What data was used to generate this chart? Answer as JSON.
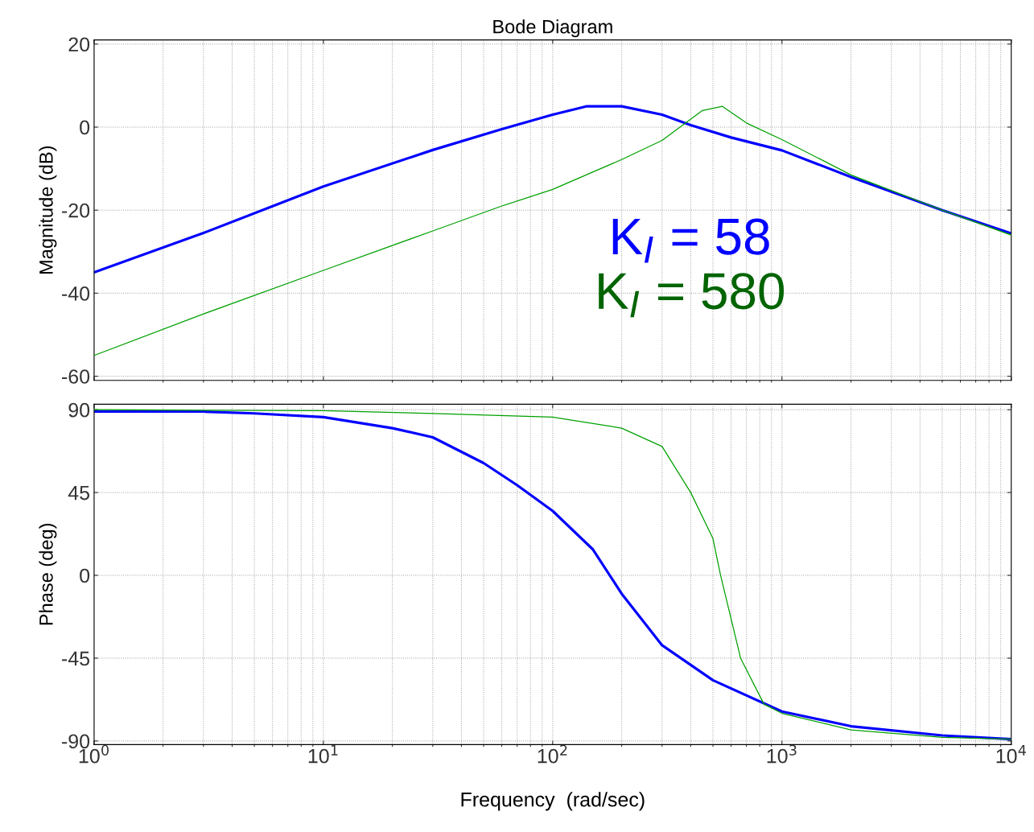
{
  "chart_data": [
    {
      "type": "line",
      "title": "Bode Diagram",
      "ylabel": "Magnitude (dB)",
      "log": "x",
      "xlim": [
        1,
        10000
      ],
      "ylim": [
        -61,
        21
      ],
      "yticks": [
        -60,
        -40,
        -20,
        0,
        20
      ],
      "xticks": [
        {
          "value": 1,
          "label": null
        },
        {
          "value": 10,
          "label": null
        },
        {
          "value": 100,
          "label": null
        },
        {
          "value": 1000,
          "label": null
        },
        {
          "value": 10000,
          "label": null
        }
      ],
      "grid": true,
      "tick_labels": "y",
      "annotations": [
        "K$_{I}$ = 58",
        "K$_{I}$ = 580"
      ],
      "series": [
        {
          "color": "#0000ff",
          "x": [
            1,
            3,
            10,
            30,
            60,
            100,
            140,
            200,
            300,
            400,
            600,
            1000,
            2000,
            5000,
            10000
          ],
          "values": [
            -35,
            -25.5,
            -14.3,
            -5.5,
            -0.5,
            3,
            5,
            5,
            3,
            0.5,
            -2.5,
            -5.6,
            -12,
            -20,
            -25.6
          ]
        },
        {
          "color": "#00a000",
          "x": [
            1,
            3,
            10,
            30,
            60,
            100,
            200,
            300,
            450,
            550,
            700,
            1000,
            2000,
            5000,
            10000
          ],
          "values": [
            -55,
            -45,
            -34.5,
            -25,
            -19,
            -15,
            -7.8,
            -3.2,
            4,
            5,
            1,
            -3,
            -11.5,
            -20,
            -26
          ]
        }
      ]
    },
    {
      "type": "line",
      "xlabel": "Frequency  (rad/sec)",
      "ylabel": "Phase (deg)",
      "log": "x",
      "xlim": [
        1,
        10000
      ],
      "ylim": [
        -92,
        93
      ],
      "yticks": [
        -90,
        -45,
        0,
        45,
        90
      ],
      "xticks": [
        {
          "value": 1,
          "label": "10$^{0}$"
        },
        {
          "value": 10,
          "label": "10$^{1}$"
        },
        {
          "value": 100,
          "label": "10$^{2}$"
        },
        {
          "value": 1000,
          "label": "10$^{3}$"
        },
        {
          "value": 10000,
          "label": "10$^{4}$"
        }
      ],
      "grid": true,
      "series": [
        {
          "color": "#0000ff",
          "x": [
            1,
            3,
            5,
            10,
            20,
            30,
            50,
            70,
            100,
            150,
            200,
            300,
            500,
            1000,
            2000,
            5000,
            10000
          ],
          "values": [
            89,
            89,
            88,
            86,
            80,
            75,
            61,
            49,
            35,
            14,
            -10,
            -38,
            -57,
            -74,
            -82,
            -87,
            -89
          ]
        },
        {
          "color": "#00a000",
          "x": [
            1,
            10,
            30,
            100,
            200,
            300,
            400,
            500,
            540,
            660,
            835,
            1000,
            2000,
            5000,
            10000
          ],
          "values": [
            90,
            89.5,
            88,
            86,
            80,
            70,
            45,
            20,
            0,
            -45,
            -70,
            -75,
            -84,
            -88,
            -89
          ]
        }
      ]
    }
  ]
}
